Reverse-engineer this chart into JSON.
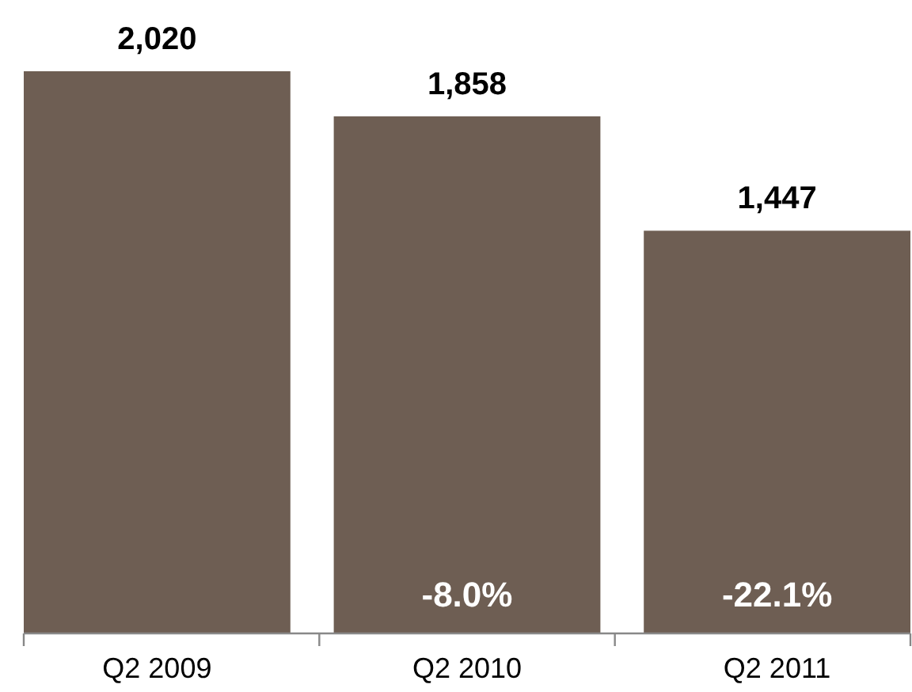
{
  "chart_data": {
    "type": "bar",
    "categories": [
      "Q2 2009",
      "Q2 2010",
      "Q2 2011"
    ],
    "values": [
      2020,
      1858,
      1447
    ],
    "color": "#6e5e53",
    "data_labels": true,
    "value_labels": [
      "2,020",
      "1,858",
      "1,447"
    ],
    "annotations": [
      "-8.0%",
      "-22.1%"
    ]
  }
}
